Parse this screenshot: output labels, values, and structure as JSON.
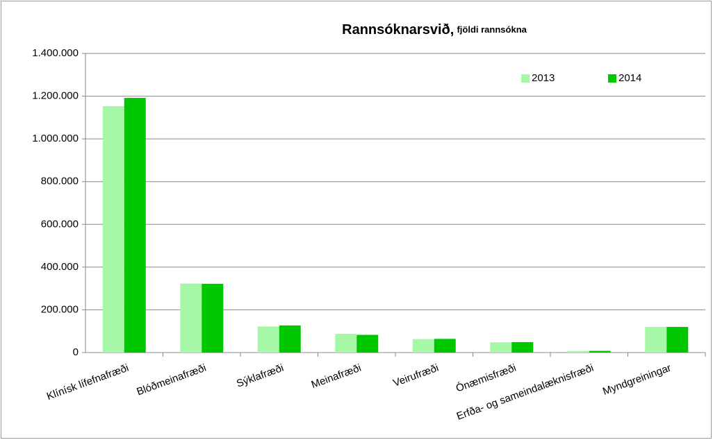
{
  "chart_data": {
    "type": "bar",
    "title": "Rannsóknarsvið,",
    "subtitle": "fjöldi rannsókna",
    "categories": [
      "Klínísk lífefnafræði",
      "Blóðmeinafræði",
      "Sýklafræði",
      "Meinafræði",
      "Veirufræði",
      "Ónæmisfræði",
      "Erfða- og sameindalæknisfræði",
      "Myndgreiningar"
    ],
    "series": [
      {
        "name": "2013",
        "color": "#a6f7a6",
        "values": [
          1153000,
          323000,
          122000,
          88000,
          63000,
          48000,
          7000,
          120000
        ]
      },
      {
        "name": "2014",
        "color": "#00c800",
        "values": [
          1192000,
          322000,
          127000,
          83000,
          64000,
          49000,
          8000,
          120000
        ]
      }
    ],
    "ylim": [
      0,
      1400000
    ],
    "yticks": [
      0,
      {
        "value": 200000,
        "label": "200.000"
      },
      {
        "value": 400000,
        "label": "400.000"
      },
      {
        "value": 600000,
        "label": "600.000"
      },
      {
        "value": 800000,
        "label": "800.000"
      },
      {
        "value": 1000000,
        "label": "1.000.000"
      },
      {
        "value": 1200000,
        "label": "1.200.000"
      },
      {
        "value": 1400000,
        "label": "1.400.000"
      }
    ],
    "grid": true,
    "legend": "top-right"
  }
}
